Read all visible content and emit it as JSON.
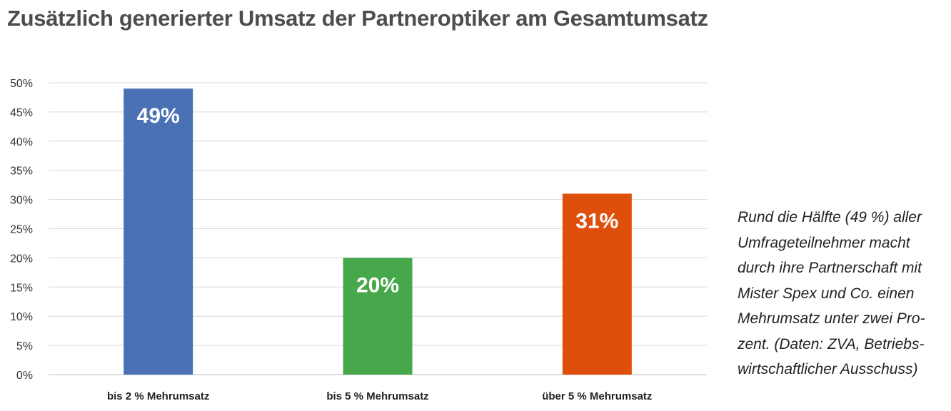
{
  "title": "Zusätzlich generierter Umsatz der Partneroptiker am Gesamtumsatz",
  "caption_lines": [
    "Rund die Hälfte (49 %) aller",
    "Umfrageteilnehmer macht",
    "durch ihre Partnerschaft mit",
    "Mister Spex und Co. einen",
    "Mehrumsatz unter zwei Pro-",
    "zent. (Daten: ZVA, Betriebs-",
    "wirtschaftlicher Ausschuss)"
  ],
  "chart_data": {
    "type": "bar",
    "title": "Zusätzlich generierter Umsatz der Partneroptiker am Gesamtumsatz",
    "categories": [
      "bis 2 % Mehrumsatz",
      "bis 5 % Mehrumsatz",
      "über 5 % Mehrumsatz"
    ],
    "values": [
      49,
      20,
      31
    ],
    "data_labels": [
      "49%",
      "20%",
      "31%"
    ],
    "colors": [
      "#4a71b4",
      "#46a84a",
      "#de4f0b"
    ],
    "ylim": [
      0,
      50
    ],
    "yticks": [
      0,
      5,
      10,
      15,
      20,
      25,
      30,
      35,
      40,
      45,
      50
    ],
    "ytick_labels": [
      "0%",
      "5%",
      "10%",
      "15%",
      "20%",
      "25%",
      "30%",
      "35%",
      "40%",
      "45%",
      "50%"
    ],
    "grid": true,
    "legend": "none"
  }
}
